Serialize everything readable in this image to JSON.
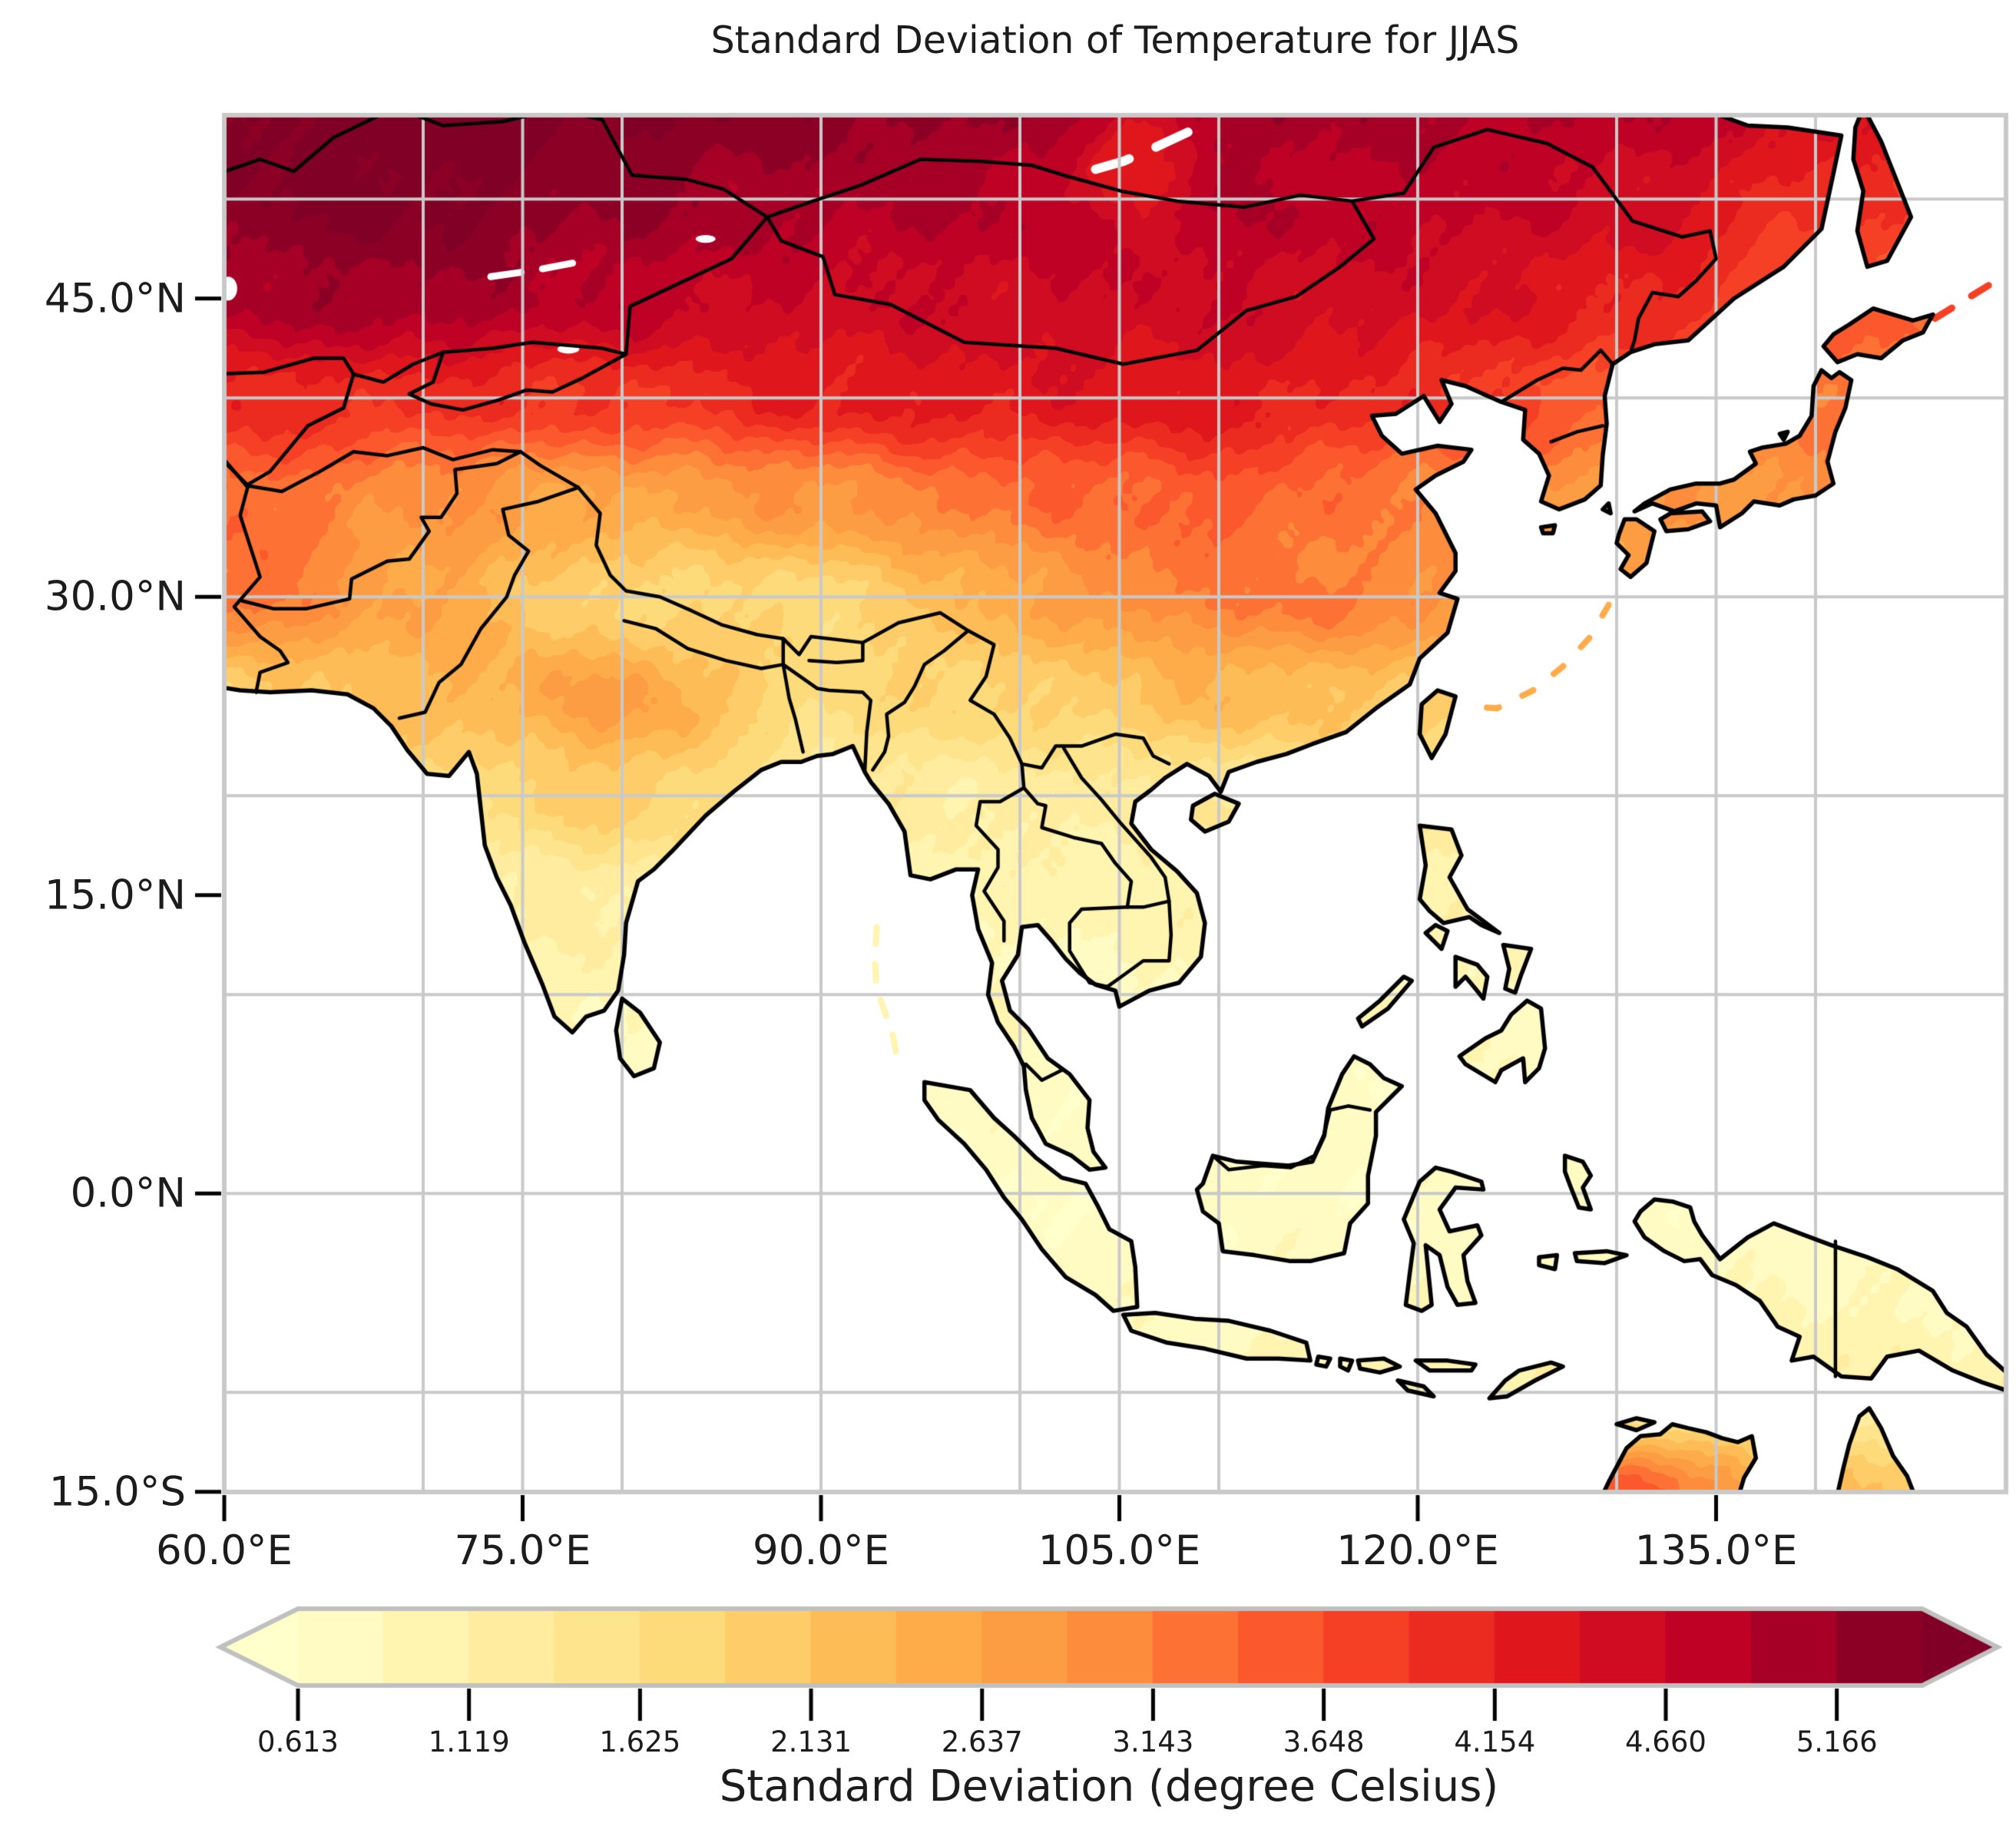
{
  "title": "Standard Deviation of Temperature for JJAS",
  "map": {
    "x_tick_labels": [
      "60.0°E",
      "75.0°E",
      "90.0°E",
      "105.0°E",
      "120.0°E",
      "135.0°E"
    ],
    "x_tick_lons": [
      60,
      75,
      90,
      105,
      120,
      135
    ],
    "y_tick_labels": [
      "45.0°N",
      "30.0°N",
      "15.0°N",
      "0.0°N",
      "15.0°S"
    ],
    "y_tick_lats": [
      45,
      30,
      15,
      0,
      -15
    ],
    "gridline_lons": [
      70,
      75,
      80,
      90,
      100,
      105,
      110,
      120,
      130,
      135,
      140
    ],
    "gridline_lats": [
      50,
      40,
      30,
      20,
      10,
      0,
      -10
    ],
    "grid_color": "#c9c9c9",
    "frame_color": "#c9c9c9",
    "coastline_color": "#000000",
    "ocean_color": "#ffffff",
    "lake_color": "#ffffff"
  },
  "colorbar": {
    "label": "Standard Deviation (degree Celsius)",
    "tick_labels": [
      "0.613",
      "1.119",
      "1.625",
      "2.131",
      "2.637",
      "3.143",
      "3.648",
      "4.154",
      "4.660",
      "5.166"
    ],
    "tick_values": [
      0.613,
      1.119,
      1.625,
      2.131,
      2.637,
      3.143,
      3.648,
      4.154,
      4.66,
      5.166
    ],
    "level_start": 0.613,
    "level_end": 5.419,
    "level_step": 0.253,
    "under_color": "#ffffcc",
    "over_color": "#800026",
    "segment_colors": [
      "#fffbc3",
      "#fff4b0",
      "#ffec9e",
      "#fee48c",
      "#fedb7a",
      "#fecd69",
      "#febc57",
      "#feac49",
      "#fd9d43",
      "#fd8d3c",
      "#fd7234",
      "#fc582d",
      "#f54026",
      "#eb2a20",
      "#df171d",
      "#cf0c21",
      "#bf0126",
      "#a70026",
      "#8d0026"
    ],
    "border_color": "#c0c0c0",
    "extend": "both"
  },
  "chart_data": {
    "type": "heatmap",
    "title": "Standard Deviation of Temperature for JJAS",
    "colorbar_label": "Standard Deviation (degree Celsius)",
    "units": "degree Celsius",
    "projection": "PlateCarree",
    "lon_range": [
      60,
      149.6
    ],
    "lat_range": [
      -15,
      54.2
    ],
    "land_only": true,
    "grid_lons": [
      60,
      70,
      80,
      90,
      100,
      110,
      120,
      130,
      140,
      150
    ],
    "grid_lats": [
      55,
      50,
      45,
      40,
      35,
      30,
      25,
      20,
      15,
      10,
      5,
      0,
      -5,
      -10,
      -15
    ],
    "std_dev_values": [
      [
        5.5,
        5.6,
        5.5,
        5.3,
        5.2,
        5.1,
        5.0,
        4.9,
        4.6,
        4.4
      ],
      [
        5.4,
        5.5,
        5.2,
        5.0,
        4.9,
        4.9,
        4.8,
        4.6,
        4.0,
        3.8
      ],
      [
        5.0,
        5.1,
        4.8,
        4.6,
        4.6,
        4.6,
        4.5,
        4.2,
        3.6,
        3.4
      ],
      [
        4.1,
        4.0,
        3.9,
        4.2,
        4.3,
        4.3,
        4.0,
        3.5,
        3.2,
        3.1
      ],
      [
        3.4,
        2.9,
        2.6,
        2.9,
        3.3,
        3.5,
        3.1,
        2.8,
        2.9,
        2.9
      ],
      [
        3.3,
        2.6,
        1.8,
        1.8,
        2.5,
        3.0,
        3.0,
        2.6,
        2.4,
        2.4
      ],
      [
        1.9,
        2.3,
        2.7,
        1.7,
        1.9,
        2.3,
        2.1,
        1.7,
        1.6,
        1.6
      ],
      [
        1.3,
        1.6,
        2.0,
        1.3,
        1.2,
        1.4,
        1.5,
        1.2,
        1.1,
        1.1
      ],
      [
        1.0,
        1.1,
        1.2,
        1.0,
        0.95,
        1.0,
        1.0,
        0.95,
        0.9,
        0.9
      ],
      [
        0.85,
        0.9,
        0.95,
        0.9,
        0.85,
        0.85,
        0.9,
        0.85,
        0.8,
        0.8
      ],
      [
        0.75,
        0.8,
        0.8,
        0.75,
        0.7,
        0.7,
        0.75,
        0.75,
        0.75,
        0.75
      ],
      [
        0.7,
        0.72,
        0.73,
        0.7,
        0.68,
        0.68,
        0.7,
        0.72,
        0.75,
        0.78
      ],
      [
        0.7,
        0.7,
        0.7,
        0.72,
        0.72,
        0.72,
        0.75,
        0.8,
        0.85,
        0.9
      ],
      [
        0.72,
        0.72,
        0.73,
        0.75,
        0.8,
        0.85,
        1.0,
        1.2,
        1.1,
        1.05
      ],
      [
        0.75,
        0.75,
        0.78,
        0.8,
        0.9,
        1.3,
        2.6,
        3.6,
        2.2,
        1.6
      ]
    ]
  }
}
